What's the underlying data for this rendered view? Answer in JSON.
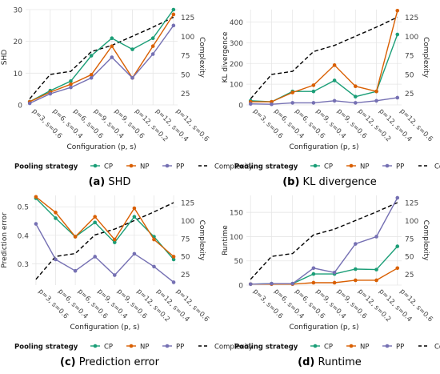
{
  "colors": {
    "CP": "#1b9e77",
    "NP": "#d95f02",
    "PP": "#7570b3",
    "Complexity": "#000000",
    "grid": "#e6e6e6",
    "axis_text": "#444444"
  },
  "legend": {
    "title": "Pooling strategy",
    "items": [
      {
        "key": "CP",
        "label": "CP",
        "style": "line-point"
      },
      {
        "key": "NP",
        "label": "NP",
        "style": "line-point"
      },
      {
        "key": "PP",
        "label": "PP",
        "style": "line-point"
      },
      {
        "key": "Complexity",
        "label": "Complexity",
        "style": "dashed"
      }
    ]
  },
  "chart_data": [
    {
      "type": "line",
      "caption_letter": "(a)",
      "caption_text": "SHD",
      "xlabel": "Configuration (p, s)",
      "ylabel": "SHD",
      "y2label": "Complexity",
      "ylim": [
        0,
        30
      ],
      "yticks": [
        0,
        10,
        20,
        30
      ],
      "y2lim": [
        10,
        135
      ],
      "y2ticks": [
        25,
        50,
        75,
        100,
        125
      ],
      "categories": [
        "p=3, s=0.6",
        "p=6, s=0.4",
        "p=6, s=0.6",
        "p=9, s=0.4",
        "p=9, s=0.6",
        "p=12, s=0.2",
        "p=12, s=0.4",
        "p=12, s=0.6"
      ],
      "series": [
        {
          "name": "CP",
          "values": [
            1,
            4.5,
            7.5,
            15.5,
            21,
            17.5,
            21,
            30
          ]
        },
        {
          "name": "NP",
          "values": [
            1,
            4,
            6.5,
            9.5,
            18.5,
            8.5,
            18.5,
            28.5
          ]
        },
        {
          "name": "PP",
          "values": [
            0.5,
            3.5,
            5.5,
            8.5,
            15,
            8.5,
            16,
            25
          ]
        }
      ],
      "complexity": [
        18,
        50,
        54,
        80,
        88,
        100,
        112,
        125
      ],
      "legend": true
    },
    {
      "type": "line",
      "caption_letter": "(b)",
      "caption_text": "KL divergence",
      "xlabel": "Configuration (p, s)",
      "ylabel": "KL divergence",
      "y2label": "Complexity",
      "ylim": [
        0,
        460
      ],
      "yticks": [
        0,
        100,
        200,
        300,
        400
      ],
      "y2lim": [
        10,
        135
      ],
      "y2ticks": [
        25,
        50,
        75,
        100,
        125
      ],
      "categories": [
        "p=3, s=0.6",
        "p=6, s=0.4",
        "p=6, s=0.6",
        "p=9, s=0.4",
        "p=9, s=0.6",
        "p=12, s=0.2",
        "p=12, s=0.4",
        "p=12, s=0.6"
      ],
      "series": [
        {
          "name": "CP",
          "values": [
            20,
            15,
            65,
            65,
            118,
            40,
            65,
            340
          ]
        },
        {
          "name": "NP",
          "values": [
            15,
            15,
            60,
            95,
            192,
            90,
            65,
            455
          ]
        },
        {
          "name": "PP",
          "values": [
            5,
            3,
            10,
            10,
            20,
            10,
            20,
            35
          ]
        }
      ],
      "complexity": [
        18,
        50,
        54,
        80,
        88,
        100,
        112,
        125
      ],
      "legend": true
    },
    {
      "type": "line",
      "caption_letter": "(c)",
      "caption_text": "Prediction error",
      "xlabel": "Configuration (p, s)",
      "ylabel": "Prediction error",
      "y2label": "Complexity",
      "ylim": [
        0.225,
        0.54
      ],
      "yticks": [
        0.3,
        0.4,
        0.5
      ],
      "y2lim": [
        10,
        135
      ],
      "y2ticks": [
        25,
        50,
        75,
        100,
        125
      ],
      "categories": [
        "p=3, s=0.6",
        "p=6, s=0.4",
        "p=6, s=0.6",
        "p=9, s=0.4",
        "p=9, s=0.6",
        "p=12, s=0.2",
        "p=12, s=0.4",
        "p=12, s=0.6"
      ],
      "series": [
        {
          "name": "CP",
          "values": [
            0.53,
            0.46,
            0.395,
            0.445,
            0.375,
            0.465,
            0.395,
            0.315
          ]
        },
        {
          "name": "NP",
          "values": [
            0.535,
            0.48,
            0.395,
            0.465,
            0.385,
            0.495,
            0.385,
            0.325
          ]
        },
        {
          "name": "PP",
          "values": [
            0.44,
            0.315,
            0.275,
            0.325,
            0.26,
            0.335,
            0.29,
            0.235
          ]
        }
      ],
      "complexity": [
        18,
        50,
        54,
        80,
        88,
        100,
        112,
        125
      ],
      "legend": true
    },
    {
      "type": "line",
      "caption_letter": "(d)",
      "caption_text": "Runtime",
      "xlabel": "Configuration (p, s)",
      "ylabel": "Runtime",
      "y2label": "Complexity",
      "ylim": [
        0,
        185
      ],
      "yticks": [
        0,
        50,
        100,
        150
      ],
      "y2lim": [
        10,
        135
      ],
      "y2ticks": [
        25,
        50,
        75,
        100,
        125
      ],
      "categories": [
        "p=3, s=0.6",
        "p=6, s=0.4",
        "p=6, s=0.6",
        "p=9, s=0.4",
        "p=9, s=0.6",
        "p=12, s=0.2",
        "p=12, s=0.4",
        "p=12, s=0.6"
      ],
      "series": [
        {
          "name": "CP",
          "values": [
            2,
            3,
            3,
            23,
            23,
            33,
            32,
            80
          ]
        },
        {
          "name": "NP",
          "values": [
            2,
            2,
            2,
            5,
            5,
            10,
            10,
            35
          ]
        },
        {
          "name": "PP",
          "values": [
            2,
            3,
            3,
            35,
            26,
            85,
            100,
            180
          ]
        }
      ],
      "complexity": [
        18,
        50,
        54,
        80,
        88,
        100,
        112,
        125
      ],
      "legend": true
    }
  ]
}
